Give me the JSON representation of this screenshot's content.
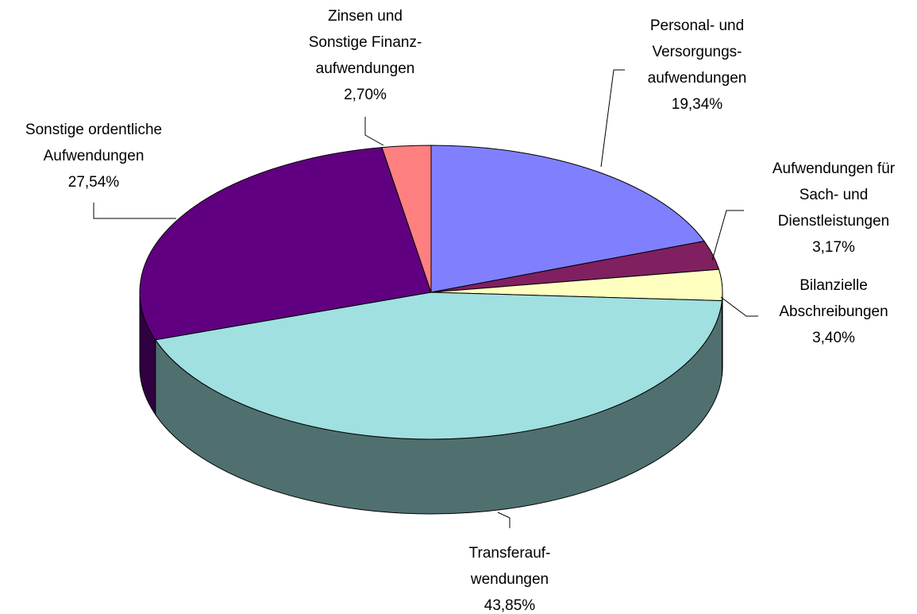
{
  "chart_data": {
    "type": "pie3d",
    "categories": [
      "Personal- und\nVersorgungs-\naufwendungen",
      "Aufwendungen für\nSach- und\nDienstleistungen",
      "Bilanzielle\nAbschreibungen",
      "Transferauf-\nwendungen",
      "Sonstige ordentliche\nAufwendungen",
      "Zinsen und\nSonstige Finanz-\naufwendungen"
    ],
    "values": [
      19.34,
      3.17,
      3.4,
      43.85,
      27.54,
      2.7
    ],
    "value_labels": [
      "19,34%",
      "3,17%",
      "3,40%",
      "43,85%",
      "27,54%",
      "2,70%"
    ],
    "colors": [
      "#8080ff",
      "#802060",
      "#ffffc0",
      "#a0e0e0",
      "#600080",
      "#ff8080"
    ]
  }
}
